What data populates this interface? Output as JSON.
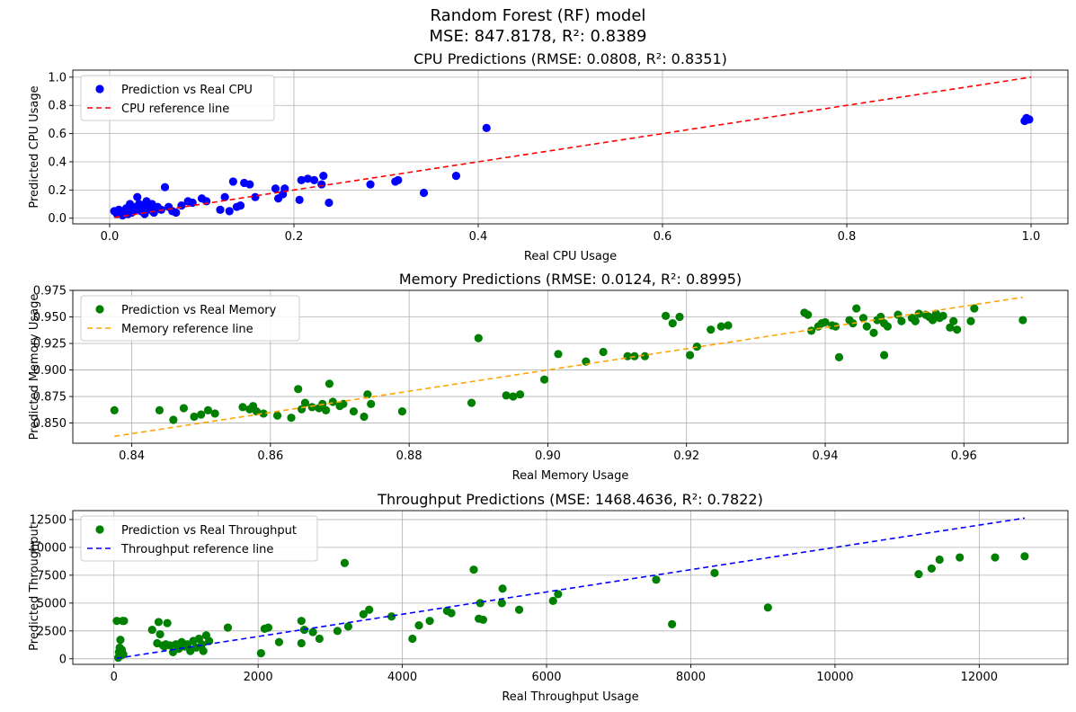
{
  "figure": {
    "title": "Random Forest (RF) model",
    "subtitle": "MSE: 847.8178, R²: 0.8389"
  },
  "chart_data": [
    {
      "type": "scatter",
      "title": "CPU Predictions (RMSE: 0.0808, R²: 0.8351)",
      "xlabel": "Real CPU Usage",
      "ylabel": "Predicted CPU Usage",
      "xlim": [
        -0.04,
        1.04
      ],
      "ylim": [
        -0.04,
        1.05
      ],
      "xticks": [
        0.0,
        0.2,
        0.4,
        0.6,
        0.8,
        1.0
      ],
      "xtick_labels": [
        "0.0",
        "0.2",
        "0.4",
        "0.6",
        "0.8",
        "1.0"
      ],
      "yticks": [
        0.0,
        0.2,
        0.4,
        0.6,
        0.8,
        1.0
      ],
      "ytick_labels": [
        "0.0",
        "0.2",
        "0.4",
        "0.6",
        "0.8",
        "1.0"
      ],
      "grid": true,
      "legend_position": "top-left",
      "series": [
        {
          "name": "Prediction vs Real CPU",
          "kind": "scatter",
          "color": "#0000ff",
          "points": [
            [
              0.005,
              0.05
            ],
            [
              0.008,
              0.03
            ],
            [
              0.01,
              0.06
            ],
            [
              0.012,
              0.04
            ],
            [
              0.014,
              0.02
            ],
            [
              0.016,
              0.05
            ],
            [
              0.018,
              0.07
            ],
            [
              0.02,
              0.03
            ],
            [
              0.022,
              0.1
            ],
            [
              0.024,
              0.04
            ],
            [
              0.026,
              0.08
            ],
            [
              0.028,
              0.06
            ],
            [
              0.03,
              0.15
            ],
            [
              0.032,
              0.1
            ],
            [
              0.034,
              0.05
            ],
            [
              0.036,
              0.08
            ],
            [
              0.038,
              0.03
            ],
            [
              0.04,
              0.12
            ],
            [
              0.042,
              0.09
            ],
            [
              0.044,
              0.06
            ],
            [
              0.046,
              0.1
            ],
            [
              0.048,
              0.04
            ],
            [
              0.052,
              0.08
            ],
            [
              0.056,
              0.06
            ],
            [
              0.06,
              0.22
            ],
            [
              0.064,
              0.08
            ],
            [
              0.068,
              0.05
            ],
            [
              0.072,
              0.04
            ],
            [
              0.078,
              0.09
            ],
            [
              0.085,
              0.12
            ],
            [
              0.09,
              0.11
            ],
            [
              0.1,
              0.14
            ],
            [
              0.105,
              0.12
            ],
            [
              0.12,
              0.06
            ],
            [
              0.125,
              0.15
            ],
            [
              0.13,
              0.05
            ],
            [
              0.134,
              0.26
            ],
            [
              0.138,
              0.08
            ],
            [
              0.142,
              0.09
            ],
            [
              0.146,
              0.25
            ],
            [
              0.152,
              0.24
            ],
            [
              0.158,
              0.15
            ],
            [
              0.18,
              0.21
            ],
            [
              0.183,
              0.14
            ],
            [
              0.188,
              0.17
            ],
            [
              0.19,
              0.21
            ],
            [
              0.206,
              0.13
            ],
            [
              0.208,
              0.27
            ],
            [
              0.215,
              0.28
            ],
            [
              0.222,
              0.27
            ],
            [
              0.23,
              0.24
            ],
            [
              0.232,
              0.3
            ],
            [
              0.238,
              0.11
            ],
            [
              0.283,
              0.24
            ],
            [
              0.31,
              0.26
            ],
            [
              0.313,
              0.27
            ],
            [
              0.341,
              0.18
            ],
            [
              0.376,
              0.3
            ],
            [
              0.409,
              0.64
            ],
            [
              0.993,
              0.69
            ],
            [
              0.995,
              0.71
            ],
            [
              0.998,
              0.7
            ]
          ]
        },
        {
          "name": "CPU reference line",
          "kind": "line",
          "color": "#ff0000",
          "dash": "6,4",
          "points": [
            [
              0.005,
              0.005
            ],
            [
              1.0,
              1.0
            ]
          ]
        }
      ]
    },
    {
      "type": "scatter",
      "title": "Memory Predictions (RMSE: 0.0124, R²: 0.8995)",
      "xlabel": "Real Memory Usage",
      "ylabel": "Predicted Memory Usage",
      "xlim": [
        0.8315,
        0.975
      ],
      "ylim": [
        0.831,
        0.975
      ],
      "xticks": [
        0.84,
        0.86,
        0.88,
        0.9,
        0.92,
        0.94,
        0.96
      ],
      "xtick_labels": [
        "0.84",
        "0.86",
        "0.88",
        "0.90",
        "0.92",
        "0.94",
        "0.96"
      ],
      "yticks": [
        0.85,
        0.875,
        0.9,
        0.925,
        0.95,
        0.975
      ],
      "ytick_labels": [
        "0.850",
        "0.875",
        "0.900",
        "0.925",
        "0.950",
        "0.975"
      ],
      "grid": true,
      "legend_position": "top-left",
      "series": [
        {
          "name": "Prediction vs Real Memory",
          "kind": "scatter",
          "color": "#008000",
          "points": [
            [
              0.8375,
              0.862
            ],
            [
              0.844,
              0.862
            ],
            [
              0.846,
              0.853
            ],
            [
              0.8475,
              0.864
            ],
            [
              0.849,
              0.856
            ],
            [
              0.85,
              0.858
            ],
            [
              0.851,
              0.862
            ],
            [
              0.852,
              0.859
            ],
            [
              0.856,
              0.865
            ],
            [
              0.857,
              0.863
            ],
            [
              0.8575,
              0.866
            ],
            [
              0.858,
              0.861
            ],
            [
              0.859,
              0.859
            ],
            [
              0.861,
              0.857
            ],
            [
              0.863,
              0.855
            ],
            [
              0.864,
              0.882
            ],
            [
              0.8645,
              0.863
            ],
            [
              0.865,
              0.869
            ],
            [
              0.866,
              0.865
            ],
            [
              0.867,
              0.864
            ],
            [
              0.8675,
              0.868
            ],
            [
              0.868,
              0.862
            ],
            [
              0.8685,
              0.887
            ],
            [
              0.869,
              0.87
            ],
            [
              0.87,
              0.866
            ],
            [
              0.8705,
              0.868
            ],
            [
              0.872,
              0.861
            ],
            [
              0.8735,
              0.856
            ],
            [
              0.874,
              0.877
            ],
            [
              0.8745,
              0.868
            ],
            [
              0.879,
              0.861
            ],
            [
              0.889,
              0.869
            ],
            [
              0.89,
              0.93
            ],
            [
              0.894,
              0.876
            ],
            [
              0.895,
              0.875
            ],
            [
              0.896,
              0.877
            ],
            [
              0.8995,
              0.891
            ],
            [
              0.9015,
              0.915
            ],
            [
              0.9055,
              0.908
            ],
            [
              0.908,
              0.917
            ],
            [
              0.9115,
              0.913
            ],
            [
              0.9125,
              0.913
            ],
            [
              0.914,
              0.913
            ],
            [
              0.917,
              0.951
            ],
            [
              0.918,
              0.944
            ],
            [
              0.919,
              0.95
            ],
            [
              0.9205,
              0.914
            ],
            [
              0.9215,
              0.922
            ],
            [
              0.9235,
              0.938
            ],
            [
              0.925,
              0.941
            ],
            [
              0.926,
              0.942
            ],
            [
              0.937,
              0.954
            ],
            [
              0.9375,
              0.952
            ],
            [
              0.938,
              0.937
            ],
            [
              0.939,
              0.941
            ],
            [
              0.9395,
              0.944
            ],
            [
              0.94,
              0.945
            ],
            [
              0.941,
              0.942
            ],
            [
              0.9415,
              0.941
            ],
            [
              0.942,
              0.912
            ],
            [
              0.9435,
              0.947
            ],
            [
              0.944,
              0.944
            ],
            [
              0.9445,
              0.958
            ],
            [
              0.9455,
              0.949
            ],
            [
              0.946,
              0.941
            ],
            [
              0.947,
              0.935
            ],
            [
              0.9475,
              0.947
            ],
            [
              0.948,
              0.95
            ],
            [
              0.9485,
              0.914
            ],
            [
              0.9485,
              0.944
            ],
            [
              0.949,
              0.941
            ],
            [
              0.9505,
              0.952
            ],
            [
              0.951,
              0.946
            ],
            [
              0.9525,
              0.949
            ],
            [
              0.953,
              0.946
            ],
            [
              0.9535,
              0.953
            ],
            [
              0.9545,
              0.952
            ],
            [
              0.955,
              0.95
            ],
            [
              0.9555,
              0.947
            ],
            [
              0.956,
              0.953
            ],
            [
              0.9565,
              0.949
            ],
            [
              0.957,
              0.951
            ],
            [
              0.958,
              0.94
            ],
            [
              0.9585,
              0.946
            ],
            [
              0.959,
              0.938
            ],
            [
              0.961,
              0.946
            ],
            [
              0.9615,
              0.958
            ],
            [
              0.9685,
              0.947
            ]
          ]
        },
        {
          "name": "Memory reference line",
          "kind": "line",
          "color": "#ffa500",
          "dash": "6,4",
          "points": [
            [
              0.8375,
              0.8375
            ],
            [
              0.9685,
              0.9685
            ]
          ]
        }
      ]
    },
    {
      "type": "scatter",
      "title": "Throughput Predictions (MSE: 1468.4636, R²: 0.7822)",
      "xlabel": "Real Throughput Usage",
      "ylabel": "Predicted Throughput",
      "xlim": [
        -570,
        13230
      ],
      "ylim": [
        -500,
        13300
      ],
      "xticks": [
        0,
        2000,
        4000,
        6000,
        8000,
        10000,
        12000
      ],
      "xtick_labels": [
        "0",
        "2000",
        "4000",
        "6000",
        "8000",
        "10000",
        "12000"
      ],
      "yticks": [
        0,
        2500,
        5000,
        7500,
        10000,
        12500
      ],
      "ytick_labels": [
        "0",
        "2500",
        "5000",
        "7500",
        "10000",
        "12500"
      ],
      "grid": true,
      "legend_position": "top-left",
      "series": [
        {
          "name": "Prediction vs Real Throughput",
          "kind": "scatter",
          "color": "#008000",
          "points": [
            [
              40,
              3400
            ],
            [
              60,
              100
            ],
            [
              70,
              600
            ],
            [
              80,
              1000
            ],
            [
              90,
              1700
            ],
            [
              100,
              300
            ],
            [
              110,
              800
            ],
            [
              120,
              3400
            ],
            [
              130,
              400
            ],
            [
              140,
              3400
            ],
            [
              530,
              2600
            ],
            [
              600,
              1400
            ],
            [
              620,
              3300
            ],
            [
              640,
              2200
            ],
            [
              680,
              1200
            ],
            [
              700,
              1100
            ],
            [
              720,
              1300
            ],
            [
              740,
              3200
            ],
            [
              780,
              1200
            ],
            [
              820,
              600
            ],
            [
              860,
              1300
            ],
            [
              900,
              900
            ],
            [
              940,
              1500
            ],
            [
              980,
              1100
            ],
            [
              1020,
              1300
            ],
            [
              1060,
              700
            ],
            [
              1100,
              1600
            ],
            [
              1140,
              1000
            ],
            [
              1180,
              1800
            ],
            [
              1220,
              1300
            ],
            [
              1240,
              700
            ],
            [
              1280,
              2100
            ],
            [
              1320,
              1600
            ],
            [
              1580,
              2800
            ],
            [
              2040,
              500
            ],
            [
              2090,
              2700
            ],
            [
              2140,
              2800
            ],
            [
              2290,
              1500
            ],
            [
              2600,
              1400
            ],
            [
              2600,
              3400
            ],
            [
              2640,
              2600
            ],
            [
              2760,
              2400
            ],
            [
              2850,
              1800
            ],
            [
              3100,
              2500
            ],
            [
              3200,
              8600
            ],
            [
              3250,
              2900
            ],
            [
              3460,
              4000
            ],
            [
              3540,
              4400
            ],
            [
              3850,
              3800
            ],
            [
              4140,
              1800
            ],
            [
              4230,
              3000
            ],
            [
              4380,
              3400
            ],
            [
              4620,
              4300
            ],
            [
              4680,
              4100
            ],
            [
              4990,
              8000
            ],
            [
              5060,
              3600
            ],
            [
              5080,
              5000
            ],
            [
              5120,
              3500
            ],
            [
              5380,
              5000
            ],
            [
              5390,
              6300
            ],
            [
              5620,
              4400
            ],
            [
              6090,
              5200
            ],
            [
              6160,
              5800
            ],
            [
              7520,
              7100
            ],
            [
              7740,
              3100
            ],
            [
              8330,
              7700
            ],
            [
              9070,
              4600
            ],
            [
              11160,
              7600
            ],
            [
              11340,
              8100
            ],
            [
              11450,
              8900
            ],
            [
              11730,
              9100
            ],
            [
              12220,
              9100
            ],
            [
              12630,
              9200
            ]
          ]
        },
        {
          "name": "Throughput reference line",
          "kind": "line",
          "color": "#0000ff",
          "dash": "6,4",
          "points": [
            [
              40,
              40
            ],
            [
              12630,
              12630
            ]
          ]
        }
      ]
    }
  ]
}
